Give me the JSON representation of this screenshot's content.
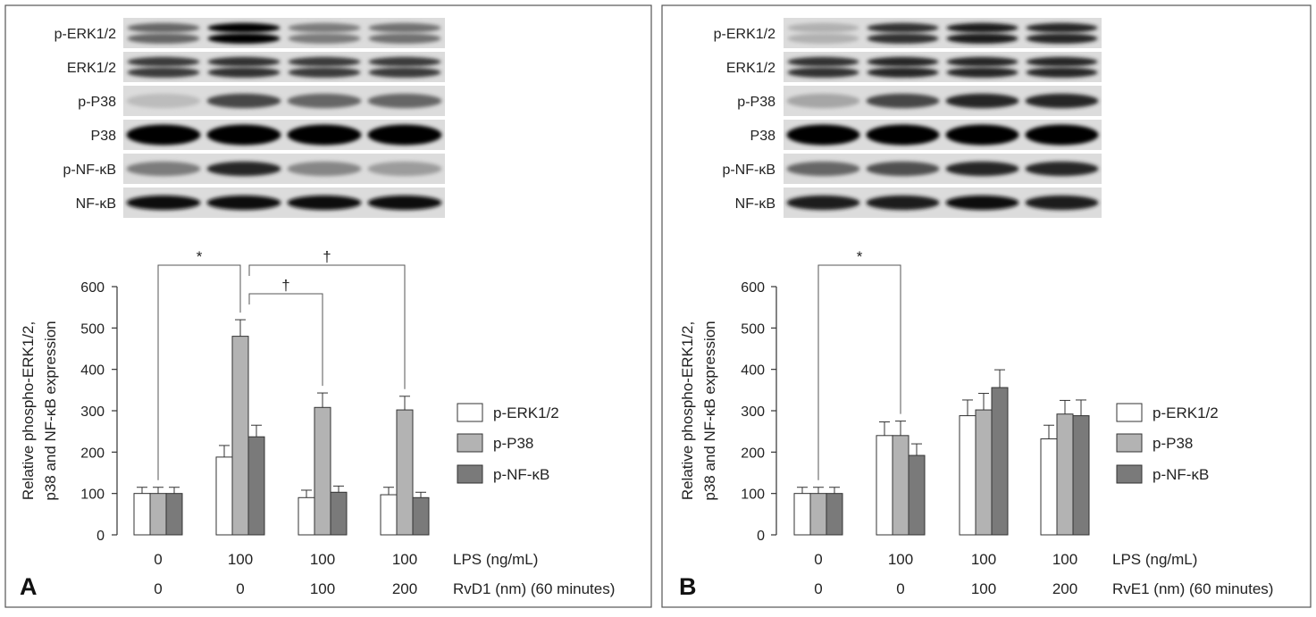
{
  "panels": [
    {
      "letter": "A",
      "blot_labels": [
        "p-ERK1/2",
        "ERK1/2",
        "p-P38",
        "P38",
        "p-NF-κB",
        "NF-κB"
      ],
      "blot_intensity": [
        [
          0.55,
          1.0,
          0.45,
          0.5
        ],
        [
          0.75,
          0.8,
          0.75,
          0.75
        ],
        [
          0.15,
          0.7,
          0.55,
          0.55
        ],
        [
          1.0,
          1.0,
          1.0,
          1.0
        ],
        [
          0.45,
          0.85,
          0.4,
          0.3
        ],
        [
          0.95,
          0.95,
          0.95,
          0.95
        ]
      ],
      "row_labels": [
        "LPS (ng/mL)",
        "RvD1 (nm) (60 minutes)"
      ],
      "lps_values": [
        "0",
        "100",
        "100",
        "100"
      ],
      "treatment_values": [
        "0",
        "0",
        "100",
        "200"
      ],
      "chart_data": {
        "type": "bar",
        "ylabel_lines": [
          "Relative phospho-ERK1/2,",
          "p38 and NF-κB  expression"
        ],
        "ylim": [
          0,
          600
        ],
        "yticks": [
          0,
          100,
          200,
          300,
          400,
          500,
          600
        ],
        "series": [
          {
            "name": "p-ERK1/2",
            "values": [
              100,
              188,
              90,
              97
            ],
            "errors": [
              15,
              28,
              18,
              18
            ],
            "color": "#ffffff"
          },
          {
            "name": "p-P38",
            "values": [
              100,
              480,
              308,
              302
            ],
            "errors": [
              15,
              40,
              35,
              33
            ],
            "color": "#b3b3b3"
          },
          {
            "name": "p-NF-κB",
            "values": [
              100,
              237,
              103,
              90
            ],
            "errors": [
              15,
              28,
              15,
              13
            ],
            "color": "#7a7a7a"
          }
        ],
        "significance": [
          {
            "from": 0,
            "to": 1,
            "symbol": "*"
          },
          {
            "from": 1,
            "to": 2,
            "symbol": "†"
          },
          {
            "from": 1,
            "to": 3,
            "symbol": "†"
          }
        ],
        "legend_position": "right"
      }
    },
    {
      "letter": "B",
      "blot_labels": [
        "p-ERK1/2",
        "ERK1/2",
        "p-P38",
        "P38",
        "p-NF-κB",
        "NF-κB"
      ],
      "blot_intensity": [
        [
          0.2,
          0.8,
          0.9,
          0.85
        ],
        [
          0.8,
          0.85,
          0.85,
          0.85
        ],
        [
          0.25,
          0.7,
          0.85,
          0.85
        ],
        [
          1.0,
          1.0,
          1.0,
          1.0
        ],
        [
          0.55,
          0.65,
          0.85,
          0.85
        ],
        [
          0.9,
          0.9,
          0.95,
          0.9
        ]
      ],
      "row_labels": [
        "LPS (ng/mL)",
        "RvE1 (nm) (60 minutes)"
      ],
      "lps_values": [
        "0",
        "100",
        "100",
        "100"
      ],
      "treatment_values": [
        "0",
        "0",
        "100",
        "200"
      ],
      "chart_data": {
        "type": "bar",
        "ylabel_lines": [
          "Relative phospho-ERK1/2,",
          "p38 and NF-κB  expression"
        ],
        "ylim": [
          0,
          600
        ],
        "yticks": [
          0,
          100,
          200,
          300,
          400,
          500,
          600
        ],
        "series": [
          {
            "name": "p-ERK1/2",
            "values": [
              100,
              240,
              288,
              232
            ],
            "errors": [
              15,
              33,
              38,
              33
            ],
            "color": "#ffffff"
          },
          {
            "name": "p-P38",
            "values": [
              100,
              240,
              302,
              292
            ],
            "errors": [
              15,
              35,
              40,
              33
            ],
            "color": "#b3b3b3"
          },
          {
            "name": "p-NF-κB",
            "values": [
              100,
              192,
              356,
              288
            ],
            "errors": [
              15,
              28,
              43,
              38
            ],
            "color": "#7a7a7a"
          }
        ],
        "significance": [
          {
            "from": 0,
            "to": 1,
            "symbol": "*"
          }
        ],
        "legend_position": "right"
      }
    }
  ]
}
